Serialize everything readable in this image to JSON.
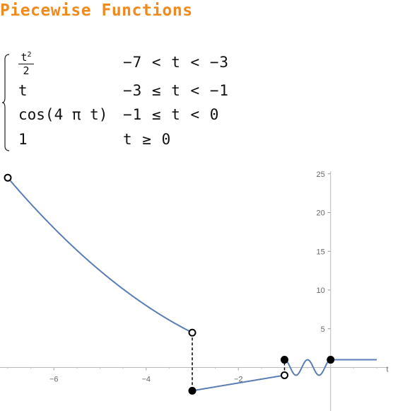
{
  "title": "Piecewise Functions",
  "definition": {
    "rows": [
      {
        "expr": "t",
        "exponent": "2",
        "denominator": "2",
        "cond": "−7 < t < −3"
      },
      {
        "expr": "t",
        "cond": "−3 ≤ t < −1"
      },
      {
        "expr": "cos(4 π t)",
        "cond": "−1 ≤ t < 0"
      },
      {
        "expr": "1",
        "cond": "t ≥ 0"
      }
    ]
  },
  "chart_data": {
    "type": "line",
    "xlabel": "t",
    "ylabel": "",
    "xlim": [
      -7.2,
      1.3
    ],
    "ylim": [
      -3.3,
      25.8
    ],
    "xticks": [
      "−6",
      "−4",
      "−2"
    ],
    "xtick_values": [
      -6,
      -4,
      -2
    ],
    "yticks": [
      "5",
      "10",
      "15",
      "20",
      "25"
    ],
    "ytick_values": [
      5,
      10,
      15,
      20,
      25
    ],
    "series_color": "#5a7db5",
    "pieces": [
      {
        "formula": "t^2/2",
        "domain": [
          -7,
          -3
        ]
      },
      {
        "formula": "t",
        "domain": [
          -3,
          -1
        ]
      },
      {
        "formula": "cos(4*pi*t)",
        "domain": [
          -1,
          0
        ]
      },
      {
        "formula": "1",
        "domain": [
          0,
          1
        ]
      }
    ],
    "open_points": [
      [
        -7,
        24.5
      ],
      [
        -3,
        4.5
      ],
      [
        -1,
        -1
      ]
    ],
    "closed_points": [
      [
        -3,
        -3
      ],
      [
        -1,
        1
      ],
      [
        0,
        1
      ]
    ],
    "jumps": [
      [
        -3,
        4.5,
        -3
      ],
      [
        -1,
        -1,
        1
      ]
    ]
  }
}
